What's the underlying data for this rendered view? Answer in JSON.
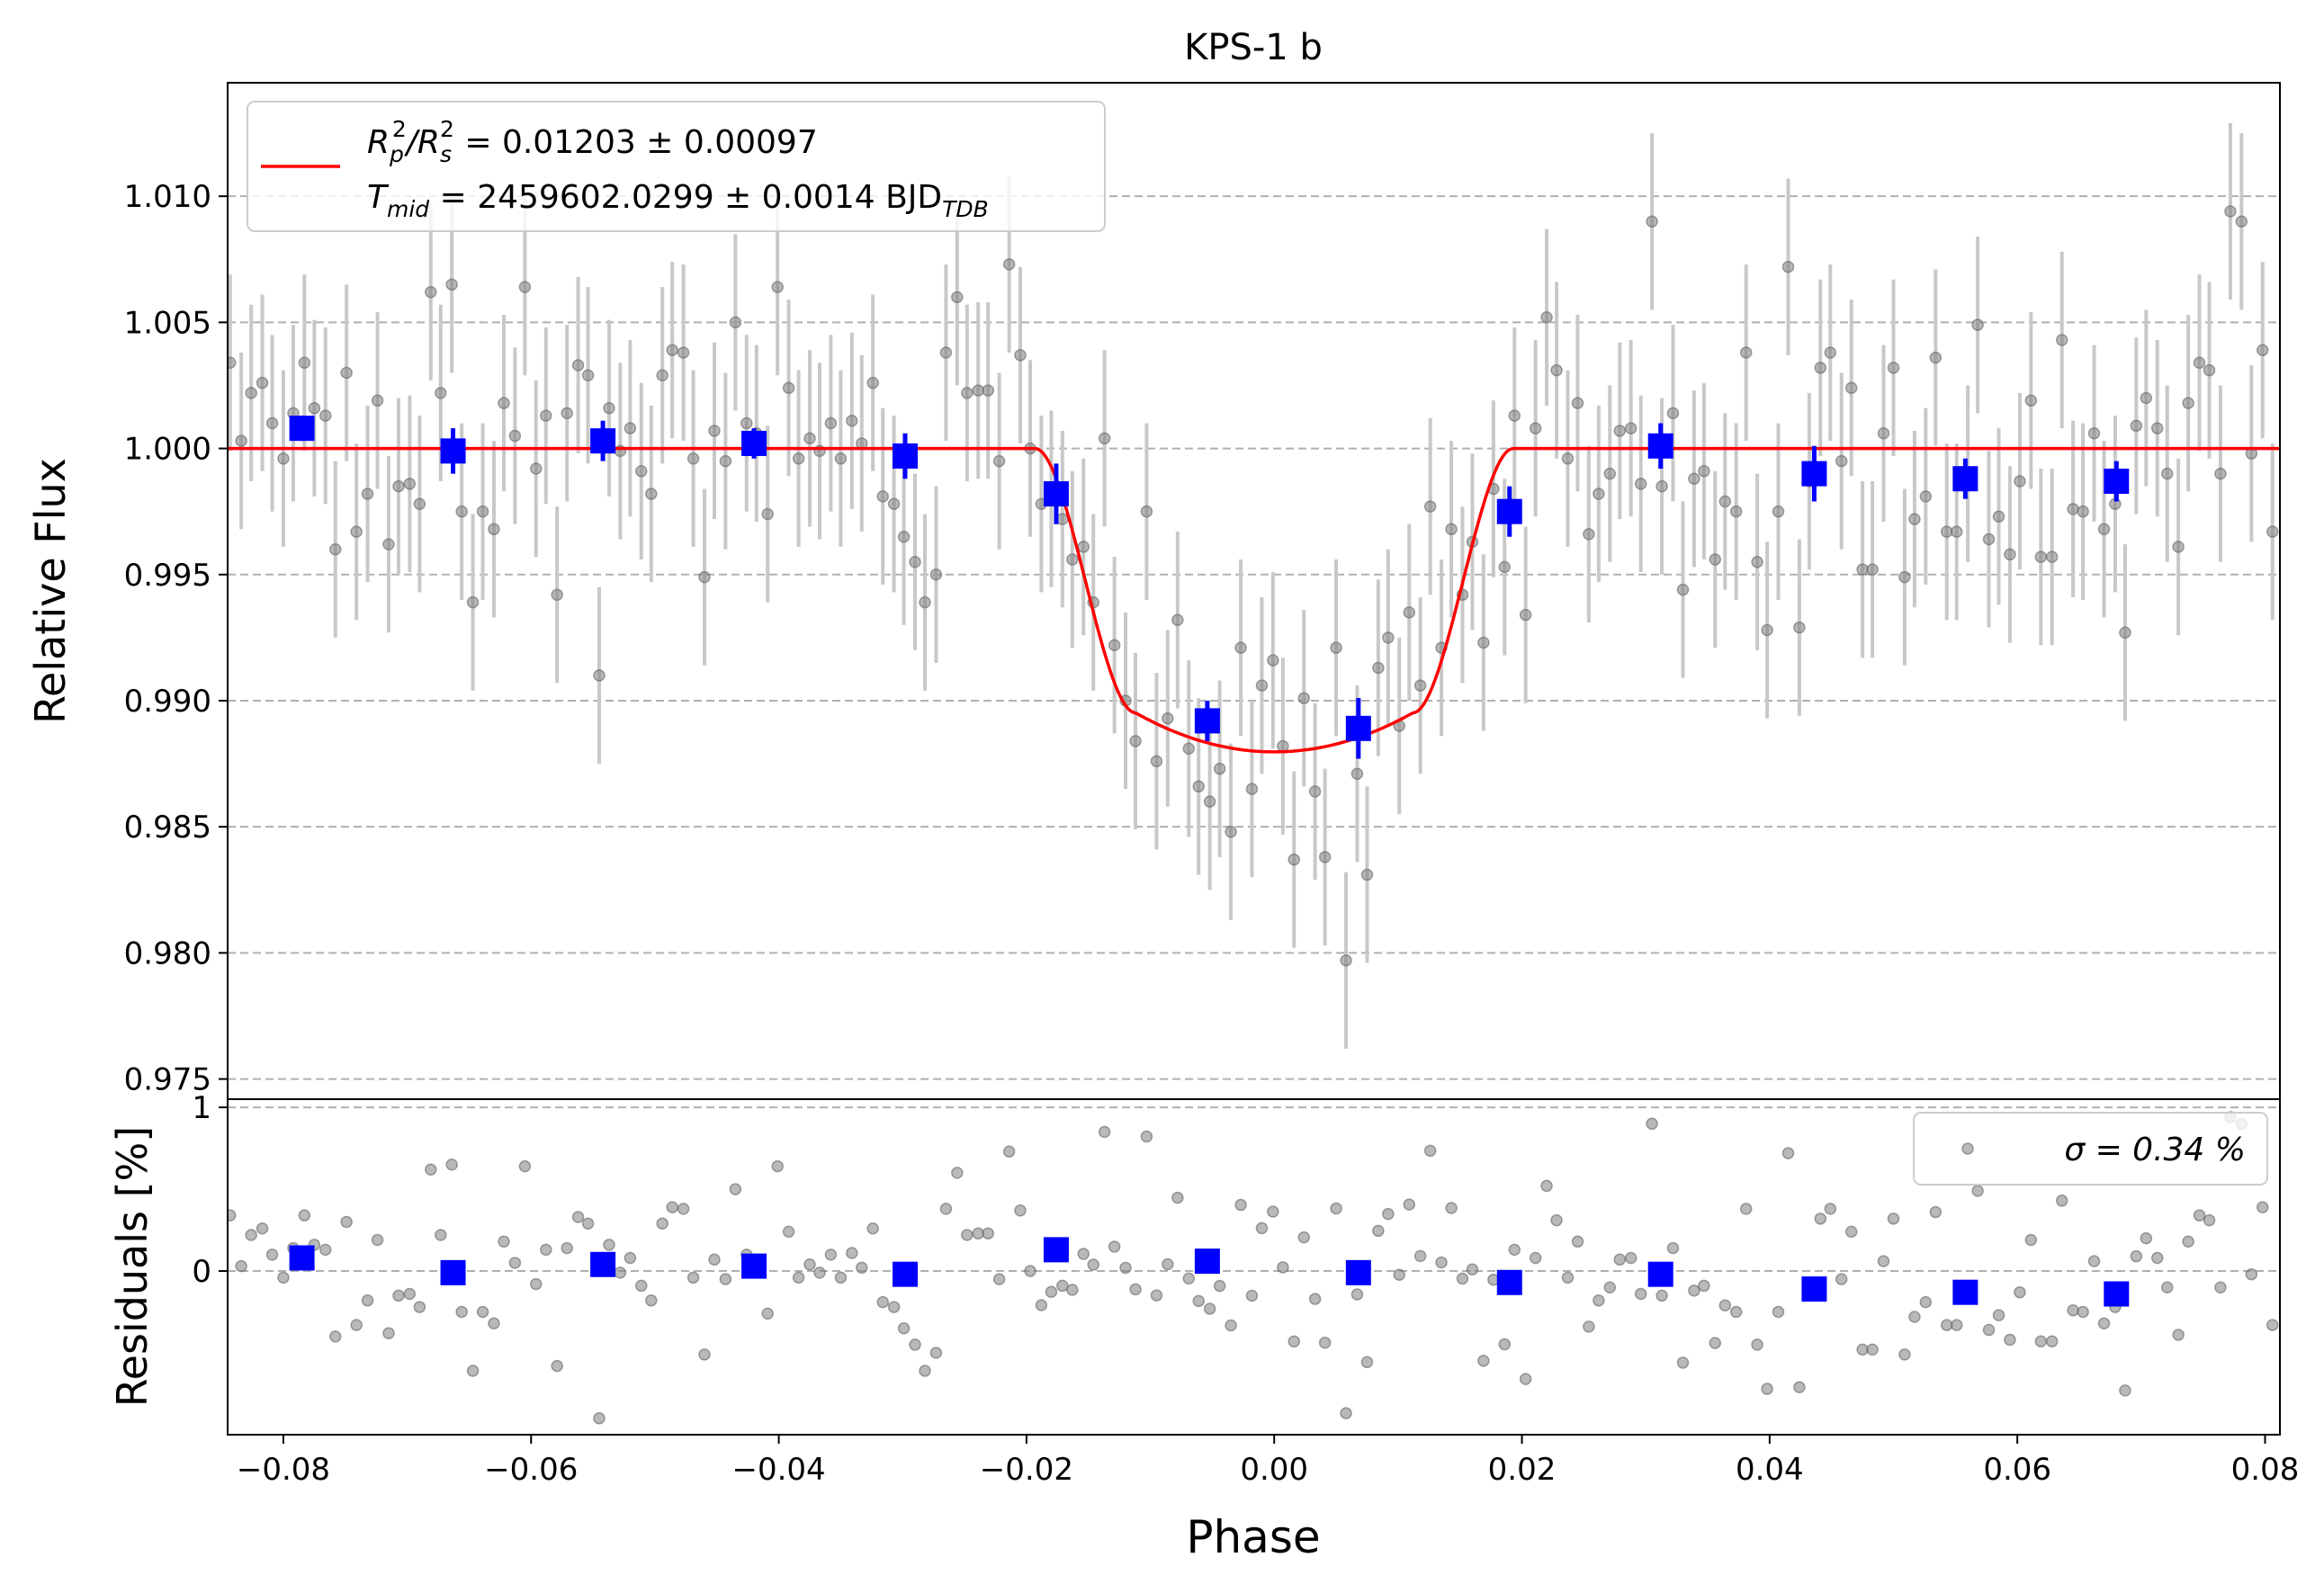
{
  "chart_data": {
    "type": "scatter",
    "title": "KPS-1 b",
    "xlabel": "Phase",
    "xlim": [
      -0.0845,
      0.0812
    ],
    "xticks": [
      -0.08,
      -0.06,
      -0.04,
      -0.02,
      0.0,
      0.02,
      0.04,
      0.06,
      0.08
    ],
    "xtick_labels": [
      "−0.08",
      "−0.06",
      "−0.04",
      "−0.02",
      "0.00",
      "0.02",
      "0.04",
      "0.06",
      "0.08"
    ],
    "grid": "horizontal dashed",
    "top_panel": {
      "ylabel": "Relative Flux",
      "ylim": [
        0.9742,
        1.0145
      ],
      "yticks": [
        0.975,
        0.98,
        0.985,
        0.99,
        0.995,
        1.0,
        1.005,
        1.01
      ],
      "ytick_labels": [
        "0.975",
        "0.980",
        "0.985",
        "0.990",
        "0.995",
        "1.000",
        "1.005",
        "1.010"
      ],
      "legend_position": "top-left",
      "legend_line1_rp": "R",
      "legend_line1_p": "p",
      "legend_line1_2a": "2",
      "legend_line1_slash": "/R",
      "legend_line1_s": "s",
      "legend_line1_2b": "2",
      "legend_line1_value": " = 0.01203 ± 0.00097",
      "legend_line2_t": "T",
      "legend_line2_mid": "mid",
      "legend_line2_value": " = 2459602.0299 ± 0.0014 BJD",
      "legend_line2_tdb": "TDB",
      "model": {
        "color": "#ff0000",
        "depth": 0.01203,
        "baseline": 1.0,
        "t1": -0.0193,
        "t2": -0.0112,
        "t3": 0.0112,
        "t4": 0.0193,
        "curvature": 0.00155
      },
      "binned_color": "#0000ff",
      "binned": [
        {
          "x": -0.0785,
          "y": 1.0008,
          "err": 0.0005
        },
        {
          "x": -0.0663,
          "y": 0.9999,
          "err": 0.0009
        },
        {
          "x": -0.0542,
          "y": 1.0003,
          "err": 0.0008
        },
        {
          "x": -0.042,
          "y": 1.0002,
          "err": 0.0006
        },
        {
          "x": -0.0298,
          "y": 0.9997,
          "err": 0.0009
        },
        {
          "x": -0.0176,
          "y": 0.9982,
          "err": 0.0012
        },
        {
          "x": -0.0054,
          "y": 0.9892,
          "err": 0.0008
        },
        {
          "x": 0.0068,
          "y": 0.9889,
          "err": 0.0012
        },
        {
          "x": 0.019,
          "y": 0.9975,
          "err": 0.001
        },
        {
          "x": 0.0312,
          "y": 1.0001,
          "err": 0.0009
        },
        {
          "x": 0.0436,
          "y": 0.999,
          "err": 0.0011
        },
        {
          "x": 0.0558,
          "y": 0.9988,
          "err": 0.0008
        },
        {
          "x": 0.068,
          "y": 0.9987,
          "err": 0.0008
        }
      ],
      "raw_errorbar": 0.0035
    },
    "bottom_panel": {
      "ylabel": "Residuals [%]",
      "ylim": [
        -1.0,
        1.05
      ],
      "yticks": [
        0,
        1
      ],
      "ytick_labels": [
        "0",
        "1"
      ],
      "legend_position": "top-right",
      "legend_text": "σ = 0.34 %",
      "binned_residuals": [
        0.08,
        -0.01,
        0.04,
        0.03,
        -0.02,
        0.13,
        0.06,
        -0.01,
        -0.07,
        -0.02,
        -0.11,
        -0.13,
        -0.14
      ]
    },
    "raw_points": [
      [
        -0.0843,
        1.0034
      ],
      [
        -0.0834,
        1.0003
      ],
      [
        -0.0826,
        1.0022
      ],
      [
        -0.0817,
        1.0026
      ],
      [
        -0.0809,
        1.001
      ],
      [
        -0.08,
        0.9996
      ],
      [
        -0.0792,
        1.0014
      ],
      [
        -0.0783,
        1.0034
      ],
      [
        -0.0775,
        1.0016
      ],
      [
        -0.0766,
        1.0013
      ],
      [
        -0.0758,
        0.996
      ],
      [
        -0.0749,
        1.003
      ],
      [
        -0.0741,
        0.9967
      ],
      [
        -0.0732,
        0.9982
      ],
      [
        -0.0724,
        1.0019
      ],
      [
        -0.0715,
        0.9962
      ],
      [
        -0.0707,
        0.9985
      ],
      [
        -0.0698,
        0.9986
      ],
      [
        -0.069,
        0.9978
      ],
      [
        -0.0681,
        1.0062
      ],
      [
        -0.0673,
        1.0022
      ],
      [
        -0.0664,
        1.0065
      ],
      [
        -0.0656,
        0.9975
      ],
      [
        -0.0647,
        0.9939
      ],
      [
        -0.0639,
        0.9975
      ],
      [
        -0.063,
        0.9968
      ],
      [
        -0.0622,
        1.0018
      ],
      [
        -0.0613,
        1.0005
      ],
      [
        -0.0605,
        1.0064
      ],
      [
        -0.0596,
        0.9992
      ],
      [
        -0.0588,
        1.0013
      ],
      [
        -0.0579,
        0.9942
      ],
      [
        -0.0571,
        1.0014
      ],
      [
        -0.0562,
        1.0033
      ],
      [
        -0.0554,
        1.0029
      ],
      [
        -0.0545,
        0.991
      ],
      [
        -0.0537,
        1.0016
      ],
      [
        -0.0528,
        0.9999
      ],
      [
        -0.052,
        1.0008
      ],
      [
        -0.0511,
        0.9991
      ],
      [
        -0.0503,
        0.9982
      ],
      [
        -0.0494,
        1.0029
      ],
      [
        -0.0486,
        1.0039
      ],
      [
        -0.0477,
        1.0038
      ],
      [
        -0.0469,
        0.9996
      ],
      [
        -0.046,
        0.9949
      ],
      [
        -0.0452,
        1.0007
      ],
      [
        -0.0443,
        0.9995
      ],
      [
        -0.0435,
        1.005
      ],
      [
        -0.0426,
        1.001
      ],
      [
        -0.0418,
        1.0006
      ],
      [
        -0.0409,
        0.9974
      ],
      [
        -0.0401,
        1.0064
      ],
      [
        -0.0392,
        1.0024
      ],
      [
        -0.0384,
        0.9996
      ],
      [
        -0.0375,
        1.0004
      ],
      [
        -0.0367,
        0.9999
      ],
      [
        -0.0358,
        1.001
      ],
      [
        -0.035,
        0.9996
      ],
      [
        -0.0341,
        1.0011
      ],
      [
        -0.0333,
        1.0002
      ],
      [
        -0.0324,
        1.0026
      ],
      [
        -0.0316,
        0.9981
      ],
      [
        -0.0307,
        0.9978
      ],
      [
        -0.0299,
        0.9965
      ],
      [
        -0.029,
        0.9955
      ],
      [
        -0.0282,
        0.9939
      ],
      [
        -0.0273,
        0.995
      ],
      [
        -0.0265,
        1.0038
      ],
      [
        -0.0256,
        1.006
      ],
      [
        -0.0248,
        1.0022
      ],
      [
        -0.0239,
        1.0023
      ],
      [
        -0.0231,
        1.0023
      ],
      [
        -0.0222,
        0.9995
      ],
      [
        -0.0214,
        1.0073
      ],
      [
        -0.0205,
        1.0037
      ],
      [
        -0.0197,
        1.0
      ],
      [
        -0.0188,
        0.9978
      ],
      [
        -0.018,
        0.998
      ],
      [
        -0.0171,
        0.9972
      ],
      [
        -0.0163,
        0.9956
      ],
      [
        -0.0154,
        0.9961
      ],
      [
        -0.0146,
        0.9939
      ],
      [
        -0.0137,
        1.0004
      ],
      [
        -0.0129,
        0.9922
      ],
      [
        -0.012,
        0.99
      ],
      [
        -0.0112,
        0.9884
      ],
      [
        -0.0103,
        0.9975
      ],
      [
        -0.0095,
        0.9876
      ],
      [
        -0.0086,
        0.9893
      ],
      [
        -0.0078,
        0.9932
      ],
      [
        -0.0069,
        0.9881
      ],
      [
        -0.0061,
        0.9866
      ],
      [
        -0.0052,
        0.986
      ],
      [
        -0.0044,
        0.9873
      ],
      [
        -0.0035,
        0.9848
      ],
      [
        -0.0027,
        0.9921
      ],
      [
        -0.0018,
        0.9865
      ],
      [
        -0.001,
        0.9906
      ],
      [
        -0.0001,
        0.9916
      ],
      [
        0.0007,
        0.9882
      ],
      [
        0.0016,
        0.9837
      ],
      [
        0.0024,
        0.9901
      ],
      [
        0.0033,
        0.9864
      ],
      [
        0.0041,
        0.9838
      ],
      [
        0.005,
        0.9921
      ],
      [
        0.0058,
        0.9797
      ],
      [
        0.0067,
        0.9871
      ],
      [
        0.0075,
        0.9831
      ],
      [
        0.0084,
        0.9913
      ],
      [
        0.0092,
        0.9925
      ],
      [
        0.0101,
        0.989
      ],
      [
        0.0109,
        0.9935
      ],
      [
        0.0118,
        0.9906
      ],
      [
        0.0126,
        0.9977
      ],
      [
        0.0135,
        0.9921
      ],
      [
        0.0143,
        0.9968
      ],
      [
        0.0152,
        0.9942
      ],
      [
        0.016,
        0.9963
      ],
      [
        0.0169,
        0.9923
      ],
      [
        0.0177,
        0.9984
      ],
      [
        0.0186,
        0.9953
      ],
      [
        0.0194,
        1.0013
      ],
      [
        0.0203,
        0.9934
      ],
      [
        0.0211,
        1.0008
      ],
      [
        0.022,
        1.0052
      ],
      [
        0.0228,
        1.0031
      ],
      [
        0.0237,
        0.9996
      ],
      [
        0.0245,
        1.0018
      ],
      [
        0.0254,
        0.9966
      ],
      [
        0.0262,
        0.9982
      ],
      [
        0.0271,
        0.999
      ],
      [
        0.0279,
        1.0007
      ],
      [
        0.0288,
        1.0008
      ],
      [
        0.0296,
        0.9986
      ],
      [
        0.0305,
        1.009
      ],
      [
        0.0313,
        0.9985
      ],
      [
        0.0322,
        1.0014
      ],
      [
        0.033,
        0.9944
      ],
      [
        0.0339,
        0.9988
      ],
      [
        0.0347,
        0.9991
      ],
      [
        0.0356,
        0.9956
      ],
      [
        0.0364,
        0.9979
      ],
      [
        0.0373,
        0.9975
      ],
      [
        0.0381,
        1.0038
      ],
      [
        0.039,
        0.9955
      ],
      [
        0.0398,
        0.9928
      ],
      [
        0.0407,
        0.9975
      ],
      [
        0.0415,
        1.0072
      ],
      [
        0.0424,
        0.9929
      ],
      [
        0.0432,
        0.9987
      ],
      [
        0.0441,
        1.0032
      ],
      [
        0.0449,
        1.0038
      ],
      [
        0.0458,
        0.9995
      ],
      [
        0.0466,
        1.0024
      ],
      [
        0.0475,
        0.9952
      ],
      [
        0.0483,
        0.9952
      ],
      [
        0.0492,
        1.0006
      ],
      [
        0.05,
        1.0032
      ],
      [
        0.0509,
        0.9949
      ],
      [
        0.0517,
        0.9972
      ],
      [
        0.0526,
        0.9981
      ],
      [
        0.0534,
        1.0036
      ],
      [
        0.0543,
        0.9967
      ],
      [
        0.0551,
        0.9967
      ],
      [
        0.056,
        0.999
      ],
      [
        0.0568,
        1.0049
      ],
      [
        0.0577,
        0.9964
      ],
      [
        0.0585,
        0.9973
      ],
      [
        0.0594,
        0.9958
      ],
      [
        0.0602,
        0.9987
      ],
      [
        0.0611,
        1.0019
      ],
      [
        0.0619,
        0.9957
      ],
      [
        0.0628,
        0.9957
      ],
      [
        0.0636,
        1.0043
      ],
      [
        0.0645,
        0.9976
      ],
      [
        0.0653,
        0.9975
      ],
      [
        0.0662,
        1.0006
      ],
      [
        0.067,
        0.9968
      ],
      [
        0.0679,
        0.9978
      ],
      [
        0.0687,
        0.9927
      ],
      [
        0.0696,
        1.0009
      ],
      [
        0.0704,
        1.002
      ],
      [
        0.0713,
        1.0008
      ],
      [
        0.0721,
        0.999
      ],
      [
        0.073,
        0.9961
      ],
      [
        0.0738,
        1.0018
      ],
      [
        0.0747,
        1.0034
      ],
      [
        0.0755,
        1.0031
      ],
      [
        0.0764,
        0.999
      ],
      [
        0.0772,
        1.0094
      ],
      [
        0.0781,
        1.009
      ],
      [
        0.0789,
        0.9998
      ],
      [
        0.0798,
        1.0039
      ],
      [
        0.0806,
        0.9967
      ]
    ]
  }
}
